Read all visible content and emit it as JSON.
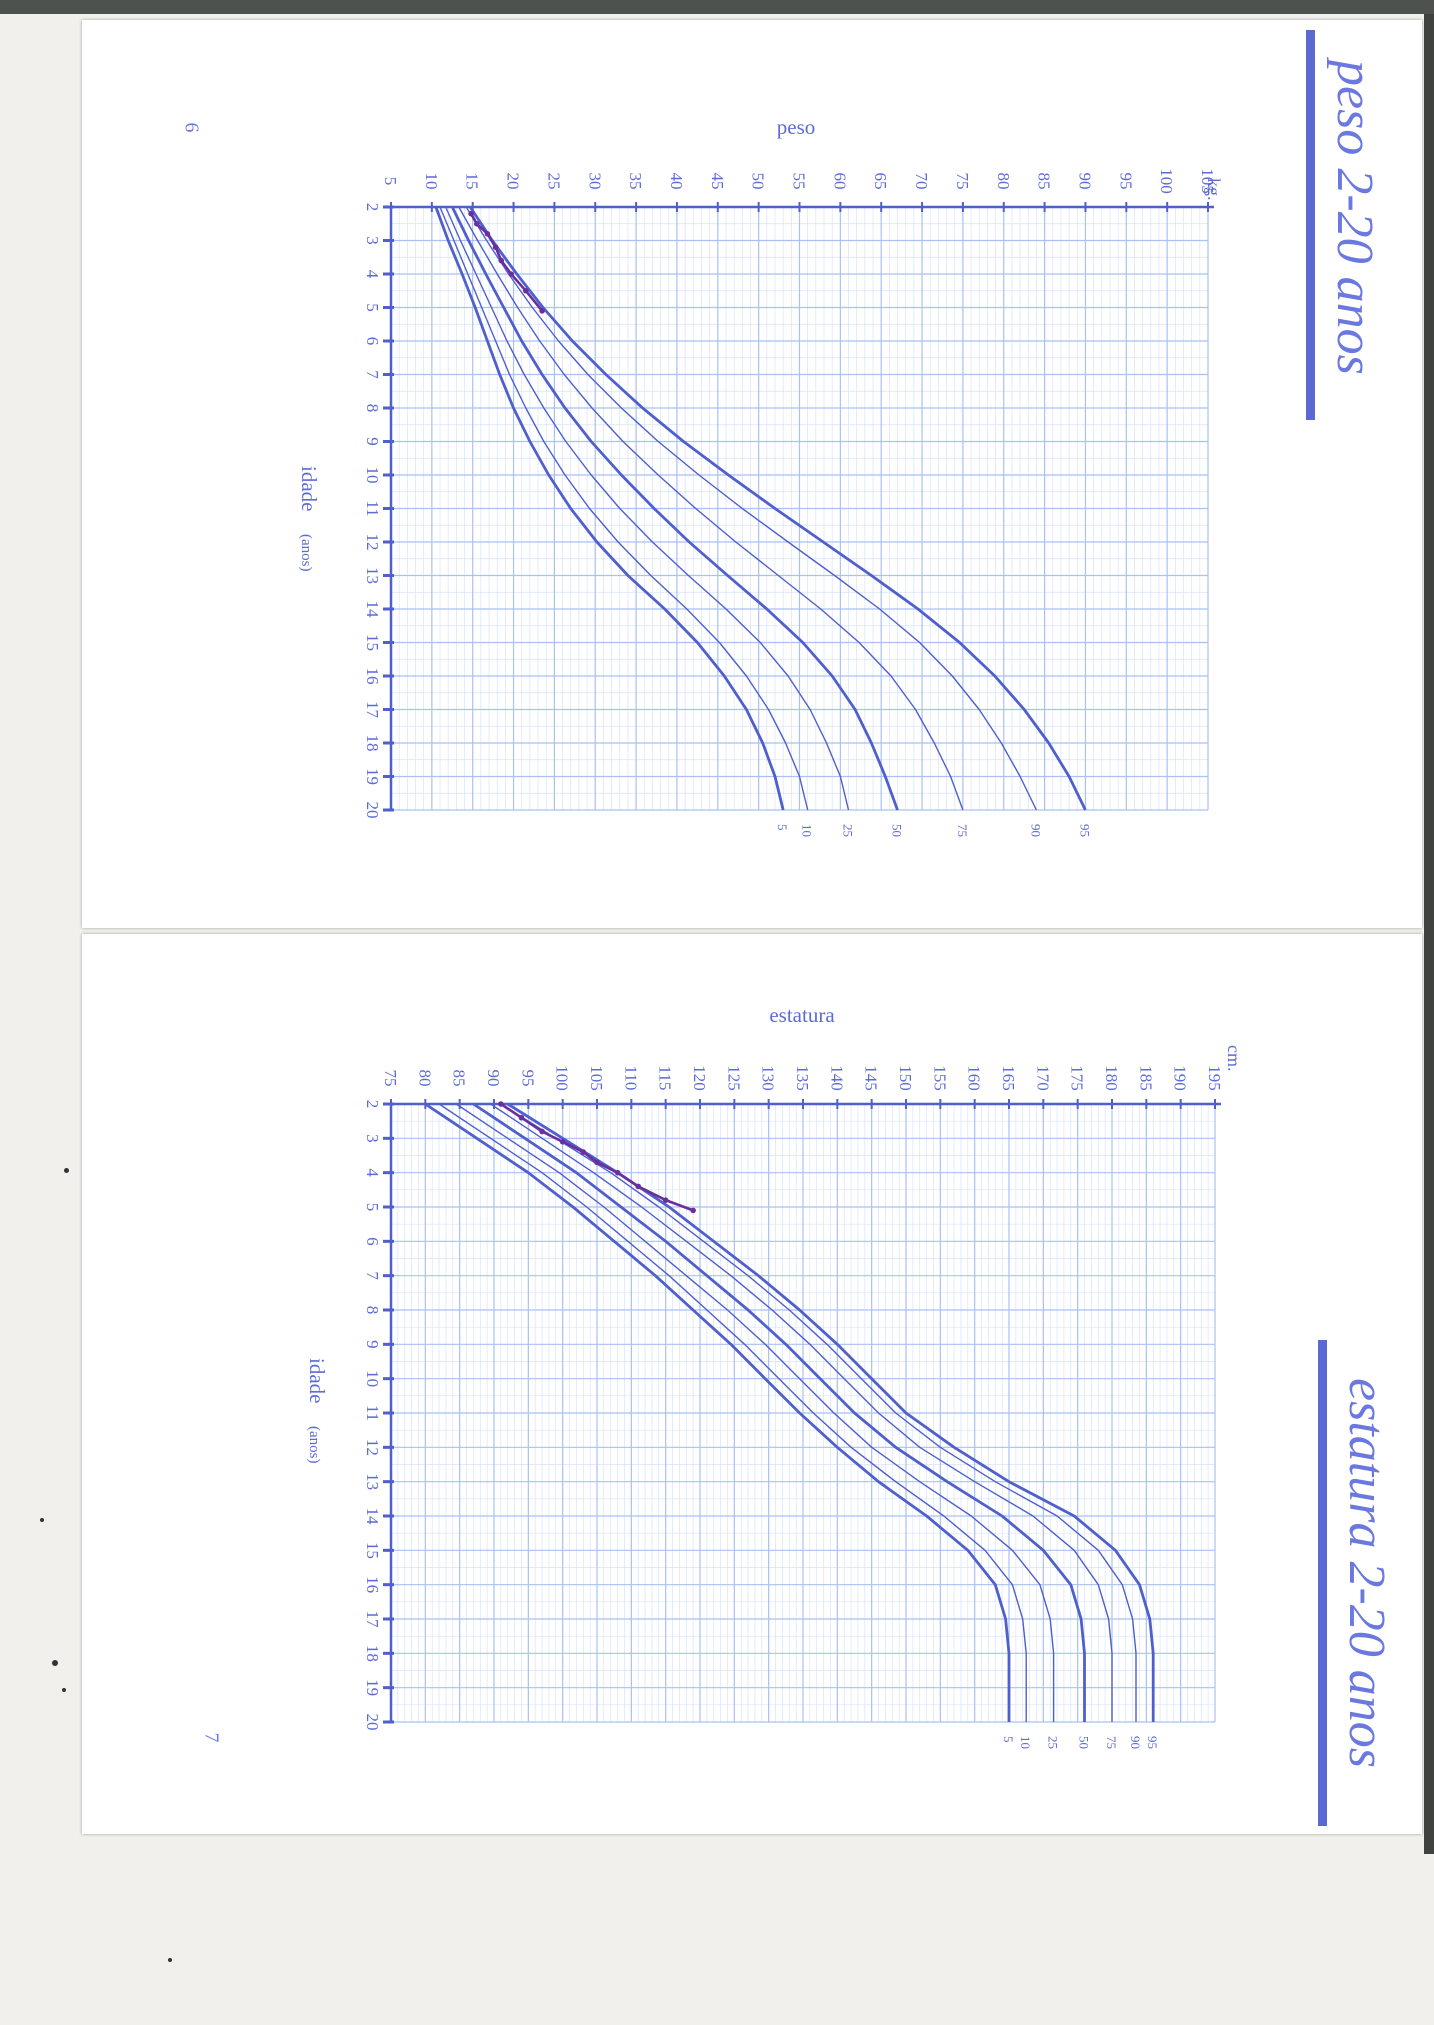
{
  "pages": {
    "top": {
      "side_title": "peso 2-20 anos",
      "page_number": "6",
      "chart_title": "peso",
      "unit": "kg.",
      "x_label": "idade",
      "x_label_sub": "(anos)"
    },
    "bottom": {
      "side_title": "estatura 2-20 anos",
      "page_number": "7",
      "chart_title": "estatura",
      "unit": "cm.",
      "x_label": "idade",
      "x_label_sub": "(anos)"
    }
  },
  "colors": {
    "curve": "#4f5fcc",
    "grid_minor": "#d7e3fb",
    "grid_major": "#a9c1f3",
    "axis": "#4f5fcc",
    "text": "#5d6bd6",
    "handwriting": "#6a2f9e"
  },
  "chart_data": [
    {
      "type": "line",
      "title": "peso",
      "xlabel": "idade (anos)",
      "ylabel": "kg.",
      "xlim": [
        2,
        20
      ],
      "ylim": [
        5,
        105
      ],
      "x_ticks": [
        2,
        3,
        4,
        5,
        6,
        7,
        8,
        9,
        10,
        11,
        12,
        13,
        14,
        15,
        16,
        17,
        18,
        19,
        20
      ],
      "y_ticks": [
        5,
        10,
        15,
        20,
        25,
        30,
        35,
        40,
        45,
        50,
        55,
        60,
        65,
        70,
        75,
        80,
        85,
        90,
        95,
        100,
        105
      ],
      "x": [
        2,
        3,
        4,
        5,
        6,
        7,
        8,
        9,
        10,
        11,
        12,
        13,
        14,
        15,
        16,
        17,
        18,
        19,
        20
      ],
      "series": [
        {
          "name": "5",
          "values": [
            10.5,
            12,
            13.7,
            15.3,
            16.8,
            18.3,
            20,
            22,
            24.3,
            27,
            30.2,
            34,
            38.5,
            42.5,
            45.8,
            48.5,
            50.5,
            52,
            53
          ]
        },
        {
          "name": "10",
          "values": [
            11,
            12.7,
            14.4,
            16.1,
            17.8,
            19.5,
            21.5,
            23.7,
            26.3,
            29.3,
            32.8,
            36.8,
            41.2,
            45.2,
            48.5,
            51.2,
            53.3,
            55,
            56
          ]
        },
        {
          "name": "25",
          "values": [
            11.7,
            13.5,
            15.4,
            17.3,
            19.2,
            21.3,
            23.7,
            26.4,
            29.5,
            33,
            37,
            41.4,
            46,
            50.2,
            53.6,
            56.3,
            58.3,
            60,
            61
          ]
        },
        {
          "name": "50",
          "values": [
            12.5,
            14.5,
            16.6,
            18.8,
            21,
            23.5,
            26.3,
            29.5,
            33.2,
            37.2,
            41.5,
            46.2,
            51,
            55.4,
            59,
            61.8,
            63.8,
            65.5,
            67
          ]
        },
        {
          "name": "75",
          "values": [
            13.3,
            15.6,
            18,
            20.5,
            23.2,
            26.2,
            29.6,
            33.4,
            37.7,
            42.3,
            47.2,
            52.4,
            57.6,
            62.3,
            66.2,
            69.2,
            71.5,
            73.5,
            75
          ]
        },
        {
          "name": "90",
          "values": [
            14.2,
            16.7,
            19.4,
            22.3,
            25.5,
            29.1,
            33.2,
            37.7,
            42.7,
            48,
            53.6,
            59.3,
            64.8,
            69.7,
            73.7,
            77,
            79.7,
            82,
            84
          ]
        },
        {
          "name": "95",
          "values": [
            14.7,
            17.4,
            20.4,
            23.6,
            27.2,
            31.3,
            35.8,
            40.8,
            46.3,
            52,
            57.9,
            63.8,
            69.5,
            74.6,
            78.9,
            82.5,
            85.5,
            88,
            90
          ]
        }
      ],
      "handwritten": {
        "x": [
          2.2,
          2.5,
          2.8,
          3.2,
          3.6,
          4.0,
          4.5,
          5.1
        ],
        "y": [
          14.8,
          15.5,
          16.8,
          17.8,
          18.5,
          19.7,
          21.5,
          23.5
        ]
      }
    },
    {
      "type": "line",
      "title": "estatura",
      "xlabel": "idade (anos)",
      "ylabel": "cm.",
      "xlim": [
        2,
        20
      ],
      "ylim": [
        75,
        195
      ],
      "x_ticks": [
        2,
        3,
        4,
        5,
        6,
        7,
        8,
        9,
        10,
        11,
        12,
        13,
        14,
        15,
        16,
        17,
        18,
        19,
        20
      ],
      "y_ticks": [
        75,
        80,
        85,
        90,
        95,
        100,
        105,
        110,
        115,
        120,
        125,
        130,
        135,
        140,
        145,
        150,
        155,
        160,
        165,
        170,
        175,
        180,
        185,
        190,
        195
      ],
      "x": [
        2,
        3,
        4,
        5,
        6,
        7,
        8,
        9,
        10,
        11,
        12,
        13,
        14,
        15,
        16,
        17,
        18,
        19,
        20
      ],
      "series": [
        {
          "name": "5",
          "values": [
            80,
            87.5,
            95,
            101.5,
            107.5,
            113.5,
            119,
            124.5,
            129.5,
            134.5,
            140,
            146,
            153,
            159,
            163,
            164.5,
            165,
            165,
            165
          ]
        },
        {
          "name": "10",
          "values": [
            82,
            89.5,
            97,
            103.5,
            109.5,
            115.5,
            121,
            126.5,
            131.5,
            136.5,
            142,
            148.5,
            155.5,
            161.5,
            165.5,
            167,
            167.5,
            167.5,
            167.5
          ]
        },
        {
          "name": "25",
          "values": [
            84.5,
            92,
            99.5,
            106,
            112,
            118,
            124,
            129.5,
            134.5,
            139.5,
            145,
            152,
            159.5,
            165.5,
            169.5,
            171,
            171.5,
            171.5,
            171.5
          ]
        },
        {
          "name": "50",
          "values": [
            87,
            94.5,
            102,
            108.5,
            115,
            121,
            127,
            132.5,
            137.5,
            142.5,
            148.5,
            156,
            164,
            170,
            174,
            175.5,
            176,
            176,
            176
          ]
        },
        {
          "name": "75",
          "values": [
            89.5,
            97,
            104.5,
            111.5,
            118,
            124.5,
            130.5,
            136,
            141,
            146,
            152,
            160,
            168.5,
            174.5,
            178,
            179.5,
            180,
            180,
            180
          ]
        },
        {
          "name": "90",
          "values": [
            91,
            99,
            107,
            114,
            120.5,
            127,
            133,
            138.5,
            143.5,
            148.5,
            155,
            163,
            172,
            178,
            181.5,
            183,
            183.5,
            183.5,
            183.5
          ]
        },
        {
          "name": "95",
          "values": [
            92,
            100,
            108,
            115.5,
            122,
            128.5,
            134.5,
            140,
            145,
            150,
            157,
            165,
            174.5,
            180.5,
            184,
            185.5,
            186,
            186,
            186
          ]
        }
      ],
      "handwritten": {
        "x": [
          2.0,
          2.4,
          2.8,
          3.1,
          3.4,
          3.7,
          4.0,
          4.4,
          4.8,
          5.1
        ],
        "y": [
          91,
          94,
          97,
          100,
          103,
          105,
          108,
          111,
          115,
          119
        ]
      }
    }
  ]
}
